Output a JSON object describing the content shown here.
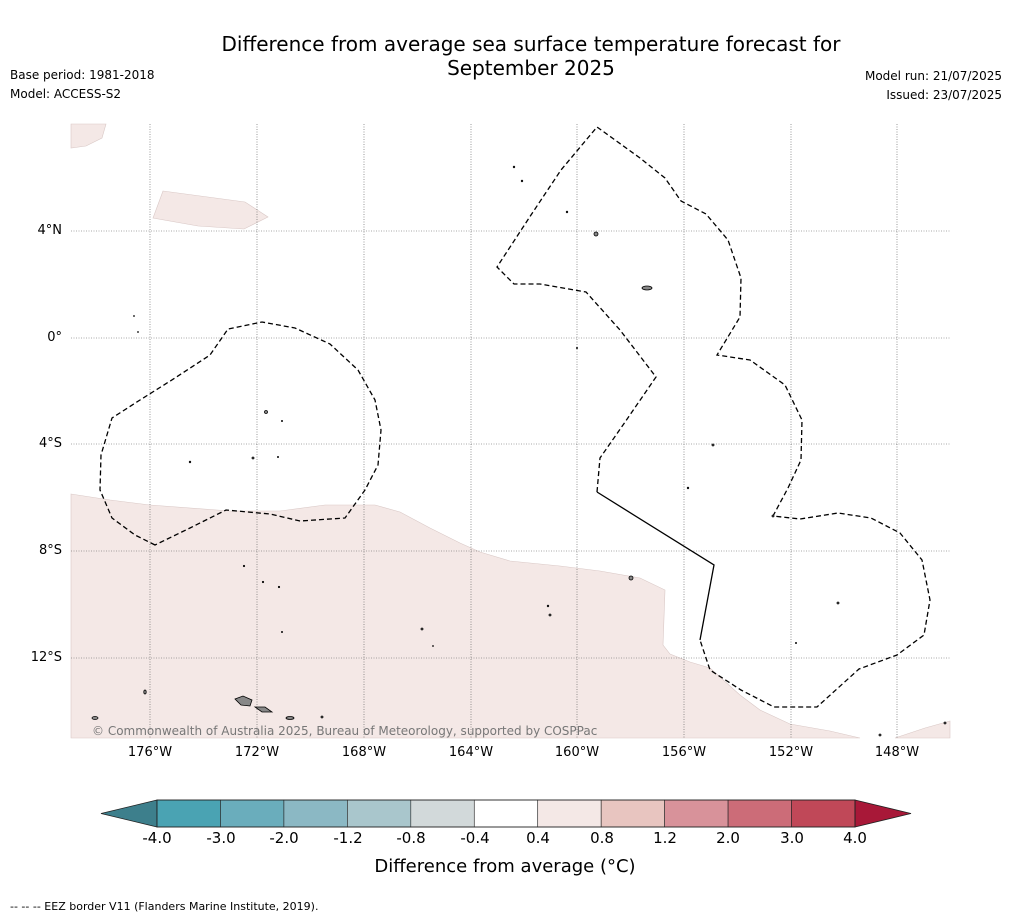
{
  "title": {
    "line1": "Difference from average sea surface temperature forecast for",
    "line2": "September 2025"
  },
  "meta_left": {
    "base_period": "Base period: 1981-2018",
    "model": "Model: ACCESS-S2"
  },
  "meta_right": {
    "model_run": "Model run: 21/07/2025",
    "issued": "Issued: 23/07/2025"
  },
  "map": {
    "lat_labels": [
      "4°N",
      "0°",
      "4°S",
      "8°S",
      "12°S"
    ],
    "lon_labels": [
      "176°W",
      "172°W",
      "168°W",
      "164°W",
      "160°W",
      "156°W",
      "152°W",
      "148°W"
    ],
    "copyright": "© Commonwealth of Australia 2025, Bureau of Meteorology, supported by COSPPac",
    "anomaly_fill_color": "#f4e8e6",
    "land_color": "#888888",
    "eez_line_style": "dashed"
  },
  "colorbar": {
    "ticks": [
      "-4.0",
      "-3.0",
      "-2.0",
      "-1.2",
      "-0.8",
      "-0.4",
      "0.4",
      "0.8",
      "1.2",
      "2.0",
      "3.0",
      "4.0"
    ],
    "colors": [
      "#3d7f8c",
      "#4aa3b3",
      "#6aadbc",
      "#8bb8c4",
      "#a9c6cc",
      "#d2d9da",
      "#ffffff",
      "#f4e8e6",
      "#e8c5c0",
      "#d8929a",
      "#cc6c78",
      "#c04858",
      "#a81838"
    ],
    "label": "Difference from average (°C)"
  },
  "footer": {
    "eez_note": "-- -- -- EEZ border V11 (Flanders Marine Institute, 2019)."
  }
}
